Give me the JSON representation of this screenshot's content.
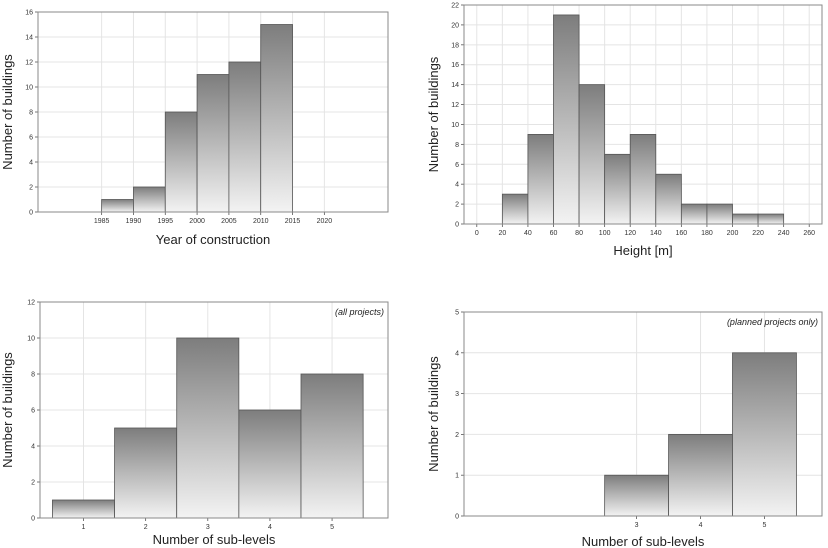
{
  "chart_data": [
    {
      "type": "bar",
      "xlabel": "Year of construction",
      "ylabel": "Number of buildings",
      "annotation": "",
      "xlim": [
        1975,
        2030
      ],
      "ylim": [
        0,
        16
      ],
      "xticks": [
        1985,
        1990,
        1995,
        2000,
        2005,
        2010,
        2015,
        2020
      ],
      "yticks": [
        0,
        2,
        4,
        6,
        8,
        10,
        12,
        14,
        16
      ],
      "bins": [
        {
          "from": 1985,
          "to": 1990,
          "value": 1
        },
        {
          "from": 1990,
          "to": 1995,
          "value": 2
        },
        {
          "from": 1995,
          "to": 2000,
          "value": 8
        },
        {
          "from": 2000,
          "to": 2005,
          "value": 11
        },
        {
          "from": 2005,
          "to": 2010,
          "value": 12
        },
        {
          "from": 2010,
          "to": 2015,
          "value": 15
        }
      ],
      "grid": true
    },
    {
      "type": "bar",
      "xlabel": "Height [m]",
      "ylabel": "Number of buildings",
      "annotation": "",
      "xlim": [
        -10,
        270
      ],
      "ylim": [
        0,
        22
      ],
      "xticks": [
        0,
        20,
        40,
        60,
        80,
        100,
        120,
        140,
        160,
        180,
        200,
        220,
        240,
        260
      ],
      "yticks": [
        0,
        2,
        4,
        6,
        8,
        10,
        12,
        14,
        16,
        18,
        20,
        22
      ],
      "bins": [
        {
          "from": 20,
          "to": 40,
          "value": 3
        },
        {
          "from": 40,
          "to": 60,
          "value": 9
        },
        {
          "from": 60,
          "to": 80,
          "value": 21
        },
        {
          "from": 80,
          "to": 100,
          "value": 14
        },
        {
          "from": 100,
          "to": 120,
          "value": 7
        },
        {
          "from": 120,
          "to": 140,
          "value": 9
        },
        {
          "from": 140,
          "to": 160,
          "value": 5
        },
        {
          "from": 160,
          "to": 180,
          "value": 2
        },
        {
          "from": 180,
          "to": 200,
          "value": 2
        },
        {
          "from": 200,
          "to": 220,
          "value": 1
        },
        {
          "from": 220,
          "to": 240,
          "value": 1
        }
      ],
      "grid": true
    },
    {
      "type": "bar",
      "xlabel": "Number of sub-levels",
      "ylabel": "Number of buildings",
      "annotation": "(all projects)",
      "xlim": [
        0.3,
        5.9
      ],
      "ylim": [
        0,
        12
      ],
      "xticks": [
        1,
        2,
        3,
        4,
        5
      ],
      "yticks": [
        0,
        2,
        4,
        6,
        8,
        10,
        12
      ],
      "bins": [
        {
          "from": 0.5,
          "to": 1.5,
          "value": 1
        },
        {
          "from": 1.5,
          "to": 2.5,
          "value": 5
        },
        {
          "from": 2.5,
          "to": 3.5,
          "value": 10
        },
        {
          "from": 3.5,
          "to": 4.5,
          "value": 6
        },
        {
          "from": 4.5,
          "to": 5.5,
          "value": 8
        }
      ],
      "grid": true
    },
    {
      "type": "bar",
      "xlabel": "Number of sub-levels",
      "ylabel": "Number of buildings",
      "annotation": "(planned projects only)",
      "xlim": [
        0.3,
        5.9
      ],
      "ylim": [
        0,
        5
      ],
      "xticks": [
        3,
        4,
        5
      ],
      "yticks": [
        0,
        1,
        2,
        3,
        4,
        5
      ],
      "bins": [
        {
          "from": 2.5,
          "to": 3.5,
          "value": 1
        },
        {
          "from": 3.5,
          "to": 4.5,
          "value": 2
        },
        {
          "from": 4.5,
          "to": 5.5,
          "value": 4
        }
      ],
      "grid": true
    }
  ],
  "colors": {
    "bar_dark": "#7d7d7d",
    "bar_light": "#f3f3f3",
    "frame": "#8a8a8a"
  }
}
